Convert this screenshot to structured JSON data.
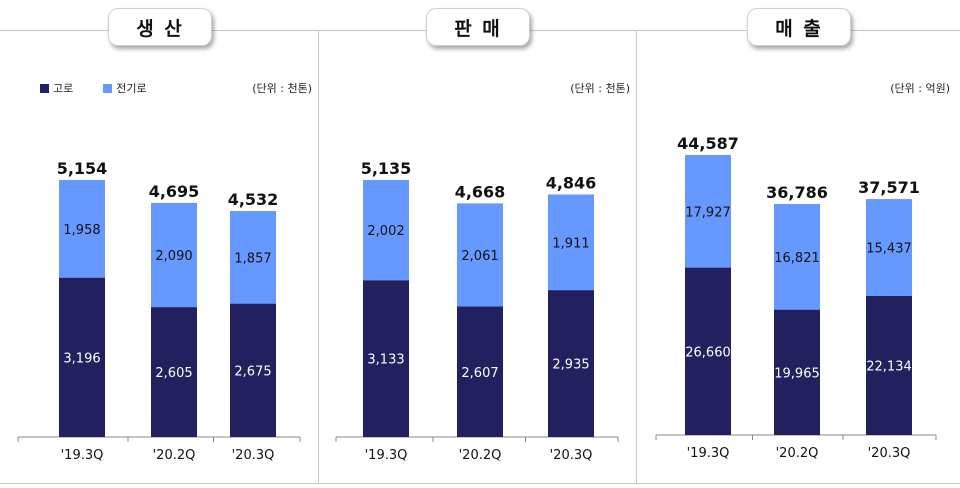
{
  "legend": {
    "blast": "고로",
    "electric": "전기로"
  },
  "colors": {
    "blast": "#232060",
    "electric": "#6699ff"
  },
  "chart_data": [
    {
      "type": "bar",
      "stacked": true,
      "title": "생 산",
      "unit": "(단위 : 천톤)",
      "categories": [
        "'19.3Q",
        "'20.2Q",
        "'20.3Q"
      ],
      "series": [
        {
          "name": "고로",
          "values": [
            3196,
            2605,
            2675
          ]
        },
        {
          "name": "전기로",
          "values": [
            1958,
            2090,
            1857
          ]
        }
      ],
      "totals": [
        5154,
        4695,
        4532
      ],
      "ylim": [
        0,
        6560
      ]
    },
    {
      "type": "bar",
      "stacked": true,
      "title": "판 매",
      "unit": "(단위 : 천톤)",
      "categories": [
        "'19.3Q",
        "'20.2Q",
        "'20.3Q"
      ],
      "series": [
        {
          "name": "고로",
          "values": [
            3133,
            2607,
            2935
          ]
        },
        {
          "name": "전기로",
          "values": [
            2002,
            2061,
            1911
          ]
        }
      ],
      "totals": [
        5135,
        4668,
        4846
      ],
      "ylim": [
        0,
        6540
      ]
    },
    {
      "type": "bar",
      "stacked": true,
      "title": "매 출",
      "unit": "(단위 : 억원)",
      "categories": [
        "'19.3Q",
        "'20.2Q",
        "'20.3Q"
      ],
      "series": [
        {
          "name": "고로",
          "values": [
            26660,
            19965,
            22134
          ]
        },
        {
          "name": "전기로",
          "values": [
            17927,
            16821,
            15437
          ]
        }
      ],
      "totals": [
        44587,
        36786,
        37571
      ],
      "ylim": [
        0,
        55500
      ]
    }
  ]
}
